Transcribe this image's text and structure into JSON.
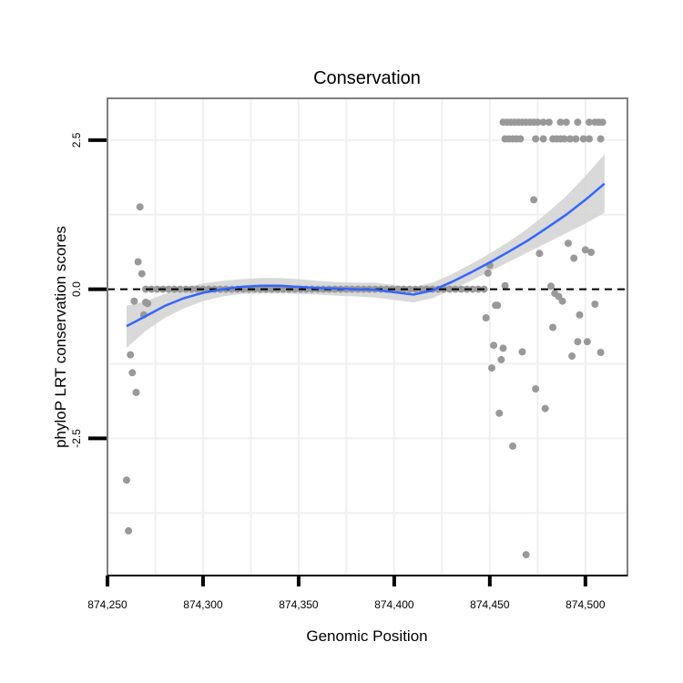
{
  "chart_data": {
    "type": "scatter",
    "title": "Conservation",
    "xlabel": "Genomic Position",
    "ylabel": "phyloP LRT conservation scores",
    "xlim": [
      874250,
      874522
    ],
    "ylim": [
      -4.8,
      3.2
    ],
    "x_ticks": [
      874250,
      874300,
      874350,
      874400,
      874450,
      874500
    ],
    "x_tick_labels": [
      "874,250",
      "874,300",
      "874,350",
      "874,400",
      "874,450",
      "874,500"
    ],
    "y_ticks": [
      -2.5,
      0.0,
      2.5
    ],
    "y_tick_labels": [
      "-2.5",
      "0.0",
      "2.5"
    ],
    "reference_line_y": 0,
    "grid": true,
    "colors": {
      "points": "#999999",
      "smooth_line": "#3366FF",
      "confidence_band": "#d2d2d2",
      "reference_line": "#000000",
      "panel_border": "#7f7f7f",
      "grid": "#f0f0f0"
    },
    "series": [
      {
        "name": "scores",
        "points": [
          [
            874260,
            -3.2
          ],
          [
            874261,
            -4.05
          ],
          [
            874262,
            -1.1
          ],
          [
            874263,
            -1.4
          ],
          [
            874264,
            -0.2
          ],
          [
            874265,
            -1.73
          ],
          [
            874266,
            0.46
          ],
          [
            874267,
            1.38
          ],
          [
            874268,
            0.26
          ],
          [
            874269,
            -0.43
          ],
          [
            874270,
            -0.22
          ],
          [
            874271,
            -0.24
          ],
          [
            874270,
            0.0
          ],
          [
            874273,
            0.0
          ],
          [
            874276,
            0.0
          ],
          [
            874279,
            0.0
          ],
          [
            874282,
            0.0
          ],
          [
            874285,
            0.0
          ],
          [
            874288,
            0.0
          ],
          [
            874291,
            0.0
          ],
          [
            874294,
            0.0
          ],
          [
            874297,
            0.0
          ],
          [
            874300,
            0.0
          ],
          [
            874303,
            0.0
          ],
          [
            874306,
            0.0
          ],
          [
            874309,
            0.0
          ],
          [
            874312,
            0.0
          ],
          [
            874315,
            0.0
          ],
          [
            874318,
            0.0
          ],
          [
            874321,
            0.0
          ],
          [
            874324,
            0.0
          ],
          [
            874327,
            0.0
          ],
          [
            874330,
            0.0
          ],
          [
            874333,
            0.0
          ],
          [
            874336,
            0.0
          ],
          [
            874339,
            0.0
          ],
          [
            874342,
            0.0
          ],
          [
            874345,
            0.0
          ],
          [
            874348,
            0.0
          ],
          [
            874351,
            0.0
          ],
          [
            874354,
            0.0
          ],
          [
            874357,
            0.0
          ],
          [
            874360,
            0.0
          ],
          [
            874363,
            0.0
          ],
          [
            874366,
            0.0
          ],
          [
            874369,
            0.0
          ],
          [
            874372,
            0.0
          ],
          [
            874375,
            0.0
          ],
          [
            874378,
            0.0
          ],
          [
            874381,
            0.0
          ],
          [
            874384,
            0.0
          ],
          [
            874387,
            0.0
          ],
          [
            874390,
            0.0
          ],
          [
            874393,
            0.0
          ],
          [
            874396,
            0.0
          ],
          [
            874399,
            0.0
          ],
          [
            874402,
            0.0
          ],
          [
            874405,
            0.0
          ],
          [
            874408,
            0.0
          ],
          [
            874411,
            0.0
          ],
          [
            874414,
            0.0
          ],
          [
            874417,
            0.0
          ],
          [
            874420,
            0.0
          ],
          [
            874423,
            0.0
          ],
          [
            874426,
            0.0
          ],
          [
            874429,
            0.0
          ],
          [
            874432,
            0.0
          ],
          [
            874435,
            0.0
          ],
          [
            874438,
            0.0
          ],
          [
            874441,
            0.0
          ],
          [
            874444,
            0.0
          ],
          [
            874447,
            0.0
          ],
          [
            874448,
            -0.48
          ],
          [
            874449,
            0.27
          ],
          [
            874450,
            0.4
          ],
          [
            874451,
            -1.32
          ],
          [
            874452,
            -0.94
          ],
          [
            874453,
            -0.27
          ],
          [
            874454,
            -0.27
          ],
          [
            874455,
            -2.08
          ],
          [
            874456,
            -1.18
          ],
          [
            874457,
            -0.99
          ],
          [
            874458,
            0.06
          ],
          [
            874462,
            -2.63
          ],
          [
            874467,
            -1.05
          ],
          [
            874473,
            1.5
          ],
          [
            874474,
            -1.67
          ],
          [
            874476,
            0.6
          ],
          [
            874479,
            -2.0
          ],
          [
            874482,
            0.05
          ],
          [
            874483,
            -0.64
          ],
          [
            874484,
            -0.07
          ],
          [
            874486,
            -0.12
          ],
          [
            874488,
            -0.2
          ],
          [
            874491,
            0.77
          ],
          [
            874493,
            -1.12
          ],
          [
            874494,
            0.52
          ],
          [
            874496,
            -0.88
          ],
          [
            874497,
            -0.43
          ],
          [
            874500,
            0.66
          ],
          [
            874501,
            -0.88
          ],
          [
            874503,
            0.62
          ],
          [
            874505,
            -0.25
          ],
          [
            874508,
            -1.06
          ],
          [
            874469,
            -4.45
          ],
          [
            874457,
            2.8
          ],
          [
            874459,
            2.8
          ],
          [
            874461,
            2.8
          ],
          [
            874463,
            2.8
          ],
          [
            874465,
            2.8
          ],
          [
            874467,
            2.8
          ],
          [
            874469,
            2.8
          ],
          [
            874471,
            2.8
          ],
          [
            874473,
            2.8
          ],
          [
            874475,
            2.8
          ],
          [
            874478,
            2.8
          ],
          [
            874481,
            2.8
          ],
          [
            874487,
            2.8
          ],
          [
            874490,
            2.8
          ],
          [
            874496,
            2.8
          ],
          [
            874502,
            2.8
          ],
          [
            874505,
            2.8
          ],
          [
            874507,
            2.8
          ],
          [
            874509,
            2.8
          ],
          [
            874458,
            2.52
          ],
          [
            874460,
            2.52
          ],
          [
            874462,
            2.52
          ],
          [
            874464,
            2.52
          ],
          [
            874466,
            2.52
          ],
          [
            874474,
            2.52
          ],
          [
            874478,
            2.52
          ],
          [
            874483,
            2.52
          ],
          [
            874485,
            2.52
          ],
          [
            874487,
            2.52
          ],
          [
            874489,
            2.52
          ],
          [
            874492,
            2.52
          ],
          [
            874495,
            2.52
          ],
          [
            874499,
            2.52
          ],
          [
            874502,
            2.52
          ],
          [
            874508,
            2.52
          ]
        ]
      },
      {
        "name": "loess-fit",
        "x": [
          874260,
          874270,
          874280,
          874290,
          874300,
          874310,
          874320,
          874330,
          874340,
          874350,
          874360,
          874370,
          874380,
          874390,
          874400,
          874410,
          874420,
          874430,
          874440,
          874450,
          874460,
          874470,
          874480,
          874490,
          874500,
          874510
        ],
        "y": [
          -0.62,
          -0.45,
          -0.28,
          -0.15,
          -0.06,
          0.0,
          0.04,
          0.06,
          0.06,
          0.04,
          0.02,
          0.01,
          0.0,
          -0.01,
          -0.05,
          -0.09,
          -0.02,
          0.12,
          0.28,
          0.45,
          0.63,
          0.82,
          1.03,
          1.25,
          1.5,
          1.77
        ],
        "lower": [
          -0.98,
          -0.7,
          -0.48,
          -0.32,
          -0.2,
          -0.12,
          -0.08,
          -0.07,
          -0.07,
          -0.08,
          -0.09,
          -0.11,
          -0.12,
          -0.14,
          -0.18,
          -0.22,
          -0.15,
          -0.01,
          0.14,
          0.3,
          0.46,
          0.62,
          0.78,
          0.94,
          1.1,
          1.28
        ],
        "upper": [
          -0.28,
          -0.2,
          -0.08,
          0.02,
          0.1,
          0.14,
          0.17,
          0.19,
          0.19,
          0.17,
          0.14,
          0.12,
          0.11,
          0.11,
          0.07,
          0.04,
          0.11,
          0.25,
          0.42,
          0.6,
          0.8,
          1.02,
          1.28,
          1.56,
          1.9,
          2.26
        ]
      }
    ]
  }
}
